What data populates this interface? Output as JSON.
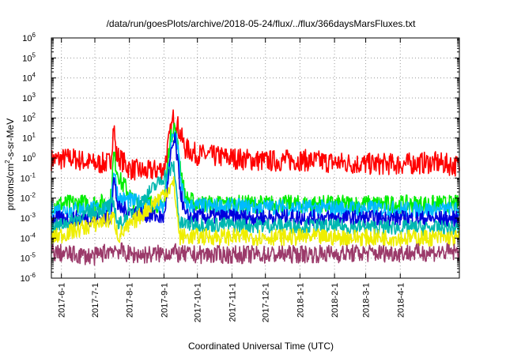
{
  "chart_data": {
    "type": "line",
    "title": "/data/run/goesPlots/archive/2018-05-24/flux/../flux/366daysMarsFluxes.txt",
    "xlabel": "Coordinated Universal Time (UTC)",
    "ylabel_parts": {
      "pre": "protons/cm",
      "sup": "2",
      "post": "-s-sr-MeV"
    },
    "yscale": "log",
    "ylim": [
      1e-06,
      1000000.0
    ],
    "xlim": [
      "2017-05-23",
      "2018-05-24"
    ],
    "grid": true,
    "x_ticks": [
      "2017-6-1",
      "2017-7-1",
      "2017-8-1",
      "2017-9-1",
      "2017-10-1",
      "2017-11-1",
      "2017-12-1",
      "2018-1-1",
      "2018-2-1",
      "2018-3-1",
      "2018-4-1"
    ],
    "y_ticks": [
      {
        "base": "10",
        "exp": "-6",
        "value": 1e-06
      },
      {
        "base": "10",
        "exp": "-5",
        "value": 1e-05
      },
      {
        "base": "10",
        "exp": "-4",
        "value": 0.0001
      },
      {
        "base": "10",
        "exp": "-3",
        "value": 0.001
      },
      {
        "base": "10",
        "exp": "-2",
        "value": 0.01
      },
      {
        "base": "10",
        "exp": "-1",
        "value": 0.1
      },
      {
        "base": "10",
        "exp": "0",
        "value": 1
      },
      {
        "base": "10",
        "exp": "1",
        "value": 10
      },
      {
        "base": "10",
        "exp": "2",
        "value": 100
      },
      {
        "base": "10",
        "exp": "3",
        "value": 1000
      },
      {
        "base": "10",
        "exp": "4",
        "value": 10000
      },
      {
        "base": "10",
        "exp": "5",
        "value": 100000
      },
      {
        "base": "10",
        "exp": "6",
        "value": 1000000
      }
    ],
    "series": [
      {
        "color": "#ff0000",
        "x": [
          "2017-05-23",
          "2017-06-10",
          "2017-07-01",
          "2017-07-15",
          "2017-07-18",
          "2017-07-20",
          "2017-08-01",
          "2017-08-15",
          "2017-09-01",
          "2017-09-06",
          "2017-09-10",
          "2017-09-14",
          "2017-09-20",
          "2017-10-01",
          "2017-11-01",
          "2017-12-01",
          "2018-01-01",
          "2018-02-01",
          "2018-03-01",
          "2018-04-01",
          "2018-05-01",
          "2018-05-24"
        ],
        "values": [
          0.8,
          1.0,
          0.5,
          0.6,
          50,
          1.5,
          0.3,
          0.2,
          0.3,
          10,
          150,
          30,
          3,
          1.5,
          1.0,
          0.7,
          0.8,
          0.6,
          0.5,
          0.5,
          0.6,
          0.4
        ]
      },
      {
        "color": "#00ee00",
        "x": [
          "2017-05-23",
          "2017-07-15",
          "2017-07-18",
          "2017-07-20",
          "2017-07-25",
          "2017-07-28",
          "2017-08-05",
          "2017-09-01",
          "2017-09-06",
          "2017-09-10",
          "2017-09-14",
          "2017-09-20",
          "2017-10-01",
          "2018-01-01",
          "2018-05-24"
        ],
        "values": [
          0.005,
          0.006,
          1.5,
          0.4,
          0.05,
          0.04,
          0.006,
          0.005,
          5,
          50,
          2,
          0.01,
          0.005,
          0.005,
          0.005
        ]
      },
      {
        "color": "#00bbff",
        "x": [
          "2017-05-23",
          "2017-07-15",
          "2017-07-18",
          "2017-07-22",
          "2017-09-01",
          "2017-09-08",
          "2017-09-12",
          "2017-09-16",
          "2017-09-20",
          "2018-05-24"
        ],
        "values": [
          0.0025,
          0.003,
          0.3,
          0.01,
          0.003,
          8,
          20,
          0.1,
          0.004,
          0.0025
        ]
      },
      {
        "color": "#0000dd",
        "x": [
          "2017-05-23",
          "2017-07-15",
          "2017-07-18",
          "2017-07-22",
          "2017-09-01",
          "2017-09-08",
          "2017-09-11",
          "2017-09-16",
          "2017-09-20",
          "2018-05-24"
        ],
        "values": [
          0.0009,
          0.001,
          0.1,
          0.003,
          0.001,
          3,
          8,
          0.02,
          0.0012,
          0.0009
        ]
      },
      {
        "color": "#00b8b0",
        "x": [
          "2017-05-23",
          "2017-07-18",
          "2017-07-22",
          "2017-09-10",
          "2017-09-15",
          "2018-05-24"
        ],
        "values": [
          0.0003,
          0.005,
          0.0004,
          0.4,
          0.0005,
          0.0003
        ]
      },
      {
        "color": "#eeee00",
        "x": [
          "2017-05-23",
          "2017-07-18",
          "2017-07-22",
          "2017-09-10",
          "2017-09-15",
          "2018-05-24"
        ],
        "values": [
          0.0001,
          0.001,
          0.00012,
          0.05,
          0.00012,
          0.0001
        ]
      },
      {
        "color": "#9b3a6a",
        "x": [
          "2017-05-23",
          "2017-06-10",
          "2017-07-01",
          "2017-07-18",
          "2017-08-01",
          "2017-08-20",
          "2017-09-10",
          "2017-09-15",
          "2017-12-01",
          "2018-05-24"
        ],
        "values": [
          2e-05,
          1.5e-05,
          1.2e-05,
          3e-05,
          1.5e-05,
          1.5e-05,
          2e-05,
          1.5e-05,
          1.5e-05,
          2e-05
        ]
      }
    ]
  }
}
